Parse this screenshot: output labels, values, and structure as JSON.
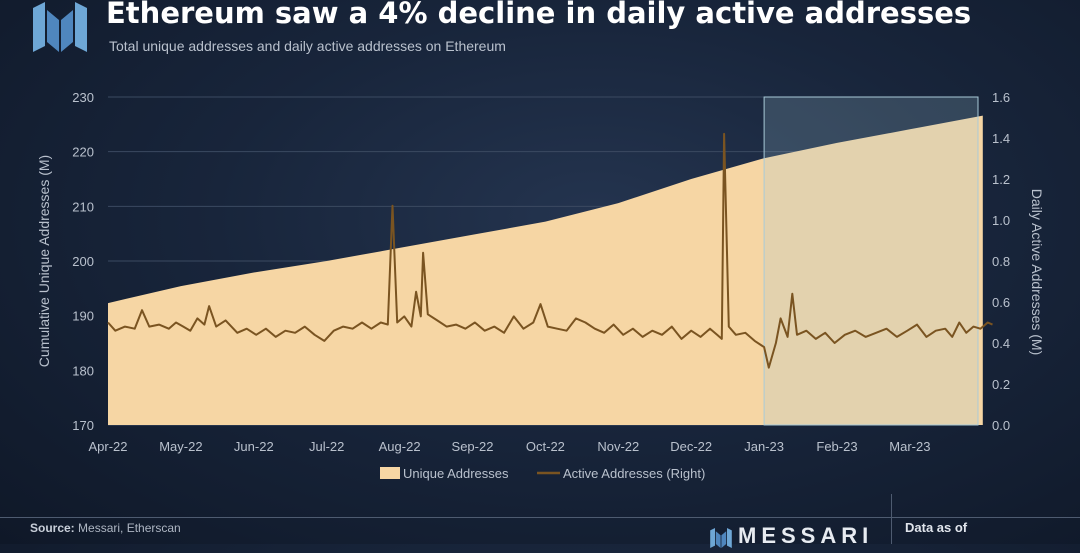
{
  "header": {
    "title": "Ethereum saw a 4% decline in daily active addresses",
    "subtitle": "Total unique addresses and daily active addresses on Ethereum"
  },
  "footer": {
    "source_label": "Source:",
    "source_text": "Messari, Etherscan",
    "brand": "MESSARI",
    "data_as_of": "Data as of"
  },
  "colors": {
    "area_fill": "#f6d6a4",
    "line": "#7a5421",
    "highlight": "#9fc3d3",
    "grid": "#3b4a61",
    "text": "#b9c1cd"
  },
  "chart_data": {
    "type": "area",
    "title": "Ethereum saw a 4% decline in daily active addresses",
    "subtitle": "Total unique addresses and daily active addresses on Ethereum",
    "ylabel": "Cumulative Unique Addresses (M)",
    "y2label": "Daily Active Addresses (M)",
    "ylim": [
      170,
      230
    ],
    "y2lim": [
      0,
      1.6
    ],
    "yticks": [
      "170",
      "180",
      "190",
      "200",
      "210",
      "220",
      "230"
    ],
    "y2ticks": [
      "0.0",
      "0.2",
      "0.4",
      "0.6",
      "0.8",
      "1.0",
      "1.2",
      "1.4",
      "1.6"
    ],
    "x_ticks": [
      "Apr-22",
      "May-22",
      "Jun-22",
      "Jul-22",
      "Aug-22",
      "Sep-22",
      "Oct-22",
      "Nov-22",
      "Dec-22",
      "Jan-23",
      "Feb-23",
      "Mar-23"
    ],
    "highlight_range": [
      "Jan-23",
      "end"
    ],
    "legend": {
      "placement": "bottom-center",
      "items": [
        "Unique Addresses",
        "Active Addresses (Right)"
      ]
    },
    "grid": true,
    "series": [
      {
        "name": "Unique Addresses",
        "axis": "left",
        "kind": "area",
        "points": [
          [
            "2022-04-01",
            192.3
          ],
          [
            "2022-05-01",
            195.4
          ],
          [
            "2022-06-01",
            197.9
          ],
          [
            "2022-07-01",
            200.0
          ],
          [
            "2022-08-01",
            202.4
          ],
          [
            "2022-09-01",
            204.8
          ],
          [
            "2022-10-01",
            207.2
          ],
          [
            "2022-11-01",
            210.6
          ],
          [
            "2022-12-01",
            215.0
          ],
          [
            "2023-01-01",
            218.8
          ],
          [
            "2023-02-01",
            221.6
          ],
          [
            "2023-03-01",
            224.1
          ],
          [
            "2023-04-01",
            226.6
          ]
        ]
      },
      {
        "name": "Active Addresses (Right)",
        "axis": "right",
        "kind": "line",
        "points": [
          [
            "2022-04-01",
            0.5
          ],
          [
            "2022-04-04",
            0.46
          ],
          [
            "2022-04-08",
            0.48
          ],
          [
            "2022-04-12",
            0.47
          ],
          [
            "2022-04-15",
            0.56
          ],
          [
            "2022-04-18",
            0.48
          ],
          [
            "2022-04-22",
            0.49
          ],
          [
            "2022-04-26",
            0.47
          ],
          [
            "2022-04-29",
            0.5
          ],
          [
            "2022-05-02",
            0.48
          ],
          [
            "2022-05-05",
            0.46
          ],
          [
            "2022-05-08",
            0.52
          ],
          [
            "2022-05-11",
            0.49
          ],
          [
            "2022-05-13",
            0.58
          ],
          [
            "2022-05-16",
            0.48
          ],
          [
            "2022-05-20",
            0.51
          ],
          [
            "2022-05-25",
            0.45
          ],
          [
            "2022-05-29",
            0.47
          ],
          [
            "2022-06-02",
            0.44
          ],
          [
            "2022-06-06",
            0.47
          ],
          [
            "2022-06-10",
            0.43
          ],
          [
            "2022-06-14",
            0.46
          ],
          [
            "2022-06-18",
            0.45
          ],
          [
            "2022-06-22",
            0.48
          ],
          [
            "2022-06-26",
            0.44
          ],
          [
            "2022-06-30",
            0.41
          ],
          [
            "2022-07-04",
            0.46
          ],
          [
            "2022-07-08",
            0.48
          ],
          [
            "2022-07-12",
            0.47
          ],
          [
            "2022-07-16",
            0.5
          ],
          [
            "2022-07-20",
            0.47
          ],
          [
            "2022-07-24",
            0.5
          ],
          [
            "2022-07-27",
            0.49
          ],
          [
            "2022-07-29",
            1.07
          ],
          [
            "2022-07-31",
            0.5
          ],
          [
            "2022-08-03",
            0.53
          ],
          [
            "2022-08-06",
            0.48
          ],
          [
            "2022-08-08",
            0.65
          ],
          [
            "2022-08-10",
            0.53
          ],
          [
            "2022-08-11",
            0.84
          ],
          [
            "2022-08-13",
            0.54
          ],
          [
            "2022-08-17",
            0.51
          ],
          [
            "2022-08-21",
            0.48
          ],
          [
            "2022-08-25",
            0.49
          ],
          [
            "2022-08-29",
            0.47
          ],
          [
            "2022-09-02",
            0.5
          ],
          [
            "2022-09-06",
            0.46
          ],
          [
            "2022-09-10",
            0.48
          ],
          [
            "2022-09-14",
            0.45
          ],
          [
            "2022-09-18",
            0.53
          ],
          [
            "2022-09-22",
            0.47
          ],
          [
            "2022-09-26",
            0.5
          ],
          [
            "2022-09-29",
            0.59
          ],
          [
            "2022-10-02",
            0.48
          ],
          [
            "2022-10-06",
            0.47
          ],
          [
            "2022-10-10",
            0.46
          ],
          [
            "2022-10-14",
            0.52
          ],
          [
            "2022-10-18",
            0.5
          ],
          [
            "2022-10-22",
            0.47
          ],
          [
            "2022-10-26",
            0.45
          ],
          [
            "2022-10-30",
            0.49
          ],
          [
            "2022-11-03",
            0.44
          ],
          [
            "2022-11-07",
            0.47
          ],
          [
            "2022-11-11",
            0.43
          ],
          [
            "2022-11-15",
            0.46
          ],
          [
            "2022-11-19",
            0.44
          ],
          [
            "2022-11-23",
            0.48
          ],
          [
            "2022-11-27",
            0.42
          ],
          [
            "2022-12-01",
            0.46
          ],
          [
            "2022-12-05",
            0.43
          ],
          [
            "2022-12-09",
            0.47
          ],
          [
            "2022-12-12",
            0.44
          ],
          [
            "2022-12-14",
            0.42
          ],
          [
            "2022-12-15",
            1.42
          ],
          [
            "2022-12-17",
            0.48
          ],
          [
            "2022-12-20",
            0.44
          ],
          [
            "2022-12-24",
            0.45
          ],
          [
            "2022-12-28",
            0.41
          ],
          [
            "2023-01-01",
            0.38
          ],
          [
            "2023-01-03",
            0.28
          ],
          [
            "2023-01-06",
            0.4
          ],
          [
            "2023-01-08",
            0.52
          ],
          [
            "2023-01-11",
            0.43
          ],
          [
            "2023-01-13",
            0.64
          ],
          [
            "2023-01-15",
            0.44
          ],
          [
            "2023-01-19",
            0.46
          ],
          [
            "2023-01-23",
            0.42
          ],
          [
            "2023-01-27",
            0.45
          ],
          [
            "2023-01-31",
            0.4
          ],
          [
            "2023-02-04",
            0.44
          ],
          [
            "2023-02-08",
            0.46
          ],
          [
            "2023-02-12",
            0.43
          ],
          [
            "2023-02-16",
            0.45
          ],
          [
            "2023-02-20",
            0.47
          ],
          [
            "2023-02-24",
            0.43
          ],
          [
            "2023-02-28",
            0.46
          ],
          [
            "2023-03-04",
            0.49
          ],
          [
            "2023-03-08",
            0.43
          ],
          [
            "2023-03-12",
            0.46
          ],
          [
            "2023-03-16",
            0.47
          ],
          [
            "2023-03-19",
            0.43
          ],
          [
            "2023-03-22",
            0.5
          ],
          [
            "2023-03-25",
            0.45
          ],
          [
            "2023-03-28",
            0.48
          ],
          [
            "2023-03-31",
            0.47
          ],
          [
            "2023-04-03",
            0.5
          ],
          [
            "2023-04-05",
            0.49
          ]
        ]
      }
    ]
  }
}
